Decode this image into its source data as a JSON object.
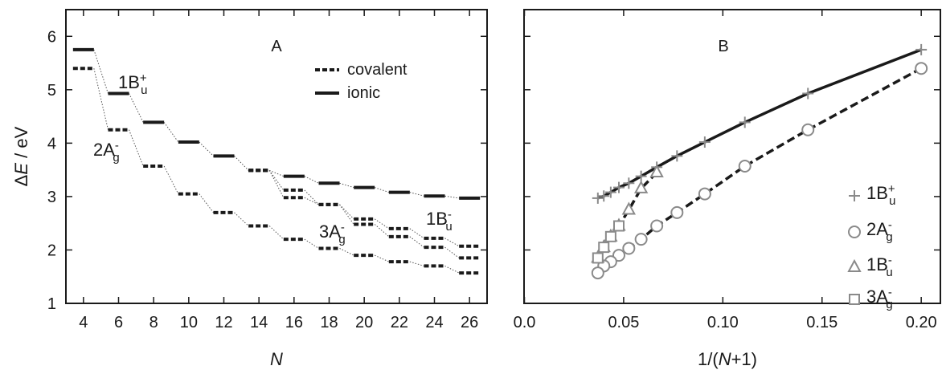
{
  "chart_data": [
    {
      "type": "line",
      "panel_label": "A",
      "xlabel": "N",
      "ylabel": "ΔE / eV",
      "xlim": [
        3,
        27
      ],
      "ylim": [
        1,
        6.5
      ],
      "xticks": [
        4,
        6,
        8,
        10,
        12,
        14,
        16,
        18,
        20,
        22,
        24,
        26
      ],
      "yticks": [
        1,
        2,
        3,
        4,
        5,
        6
      ],
      "legend": {
        "position": "top-right",
        "entries": [
          {
            "label": "covalent",
            "style": "dashed-bar"
          },
          {
            "label": "ionic",
            "style": "solid-bar"
          }
        ]
      },
      "x": [
        4,
        6,
        8,
        10,
        12,
        14,
        16,
        18,
        20,
        22,
        24,
        26
      ],
      "series": [
        {
          "state": "1Bu+",
          "character": [
            "ionic",
            "ionic",
            "ionic",
            "ionic",
            "ionic",
            "covalent",
            "ionic",
            "ionic",
            "ionic",
            "ionic",
            "ionic",
            "ionic"
          ],
          "values": [
            5.75,
            4.93,
            4.39,
            4.02,
            3.76,
            3.49,
            3.38,
            3.25,
            3.17,
            3.08,
            3.01,
            2.97
          ]
        },
        {
          "state": "2Ag-",
          "character": [
            "covalent",
            "covalent",
            "covalent",
            "covalent",
            "covalent",
            "covalent",
            "covalent",
            "covalent",
            "covalent",
            "covalent",
            "covalent",
            "covalent"
          ],
          "values": [
            5.4,
            4.25,
            3.57,
            3.05,
            2.7,
            2.45,
            2.2,
            2.03,
            1.9,
            1.78,
            1.7,
            1.57
          ]
        },
        {
          "state": "3Ag-",
          "character": [
            "covalent",
            "covalent",
            "covalent",
            "covalent",
            "covalent",
            "covalent",
            "covalent",
            "covalent",
            "covalent",
            "covalent",
            "covalent",
            "covalent"
          ],
          "x": [
            14,
            16,
            18,
            20,
            22,
            24,
            26
          ],
          "values": [
            3.49,
            3.12,
            2.85,
            2.58,
            2.4,
            2.22,
            2.07
          ]
        },
        {
          "state": "1Bu-",
          "character": [
            "covalent",
            "covalent",
            "covalent",
            "covalent",
            "covalent",
            "covalent",
            "covalent"
          ],
          "x": [
            14,
            16,
            18,
            20,
            22,
            24,
            26
          ],
          "values": [
            3.49,
            2.98,
            2.85,
            2.48,
            2.25,
            2.05,
            1.85
          ]
        }
      ],
      "annotations": [
        {
          "base": "1B",
          "sub": "u",
          "sup": "+"
        },
        {
          "base": "2A",
          "sub": "g",
          "sup": "-"
        },
        {
          "base": "3A",
          "sub": "g",
          "sup": "-"
        },
        {
          "base": "1B",
          "sub": "u",
          "sup": "-"
        }
      ]
    },
    {
      "type": "line",
      "panel_label": "B",
      "xlabel": "1/(N+1)",
      "xlim": [
        0,
        0.205
      ],
      "ylim": [
        1,
        6.5
      ],
      "xticks": [
        "0.0",
        "0.05",
        "0.10",
        "0.15",
        "0.20"
      ],
      "legend": {
        "position": "right",
        "entries": [
          {
            "base": "1B",
            "sub": "u",
            "sup": "+",
            "marker": "plus"
          },
          {
            "base": "2A",
            "sub": "g",
            "sup": "-",
            "marker": "circle"
          },
          {
            "base": "1B",
            "sub": "u",
            "sup": "-",
            "marker": "triangle"
          },
          {
            "base": "3A",
            "sub": "g",
            "sup": "-",
            "marker": "square"
          }
        ]
      },
      "series": [
        {
          "name": "1Bu+",
          "marker": "plus",
          "line": "solid",
          "x": [
            0.2,
            0.1429,
            0.1111,
            0.0909,
            0.0769,
            0.0667,
            0.0588,
            0.0526,
            0.0476,
            0.0435,
            0.04,
            0.037
          ],
          "values": [
            5.75,
            4.93,
            4.39,
            4.02,
            3.76,
            3.55,
            3.38,
            3.25,
            3.17,
            3.08,
            3.01,
            2.97
          ]
        },
        {
          "name": "2Ag-",
          "marker": "circle",
          "line": "dashed",
          "x": [
            0.2,
            0.1429,
            0.1111,
            0.0909,
            0.0769,
            0.0667,
            0.0588,
            0.0526,
            0.0476,
            0.0435,
            0.04,
            0.037
          ],
          "values": [
            5.4,
            4.25,
            3.57,
            3.05,
            2.7,
            2.45,
            2.2,
            2.03,
            1.9,
            1.78,
            1.7,
            1.57
          ]
        },
        {
          "name": "1Bu-",
          "marker": "triangle",
          "line": "dashed",
          "x": [
            0.0667,
            0.0588,
            0.0526,
            0.0476,
            0.0435,
            0.04,
            0.037
          ],
          "values": [
            3.45,
            3.15,
            2.75,
            2.45,
            2.25,
            2.05,
            1.85
          ]
        },
        {
          "name": "3Ag-",
          "marker": "square",
          "line": "dashed",
          "x": [
            0.0476,
            0.0435,
            0.04,
            0.037
          ],
          "values": [
            2.45,
            2.25,
            2.05,
            1.85
          ]
        }
      ]
    }
  ]
}
